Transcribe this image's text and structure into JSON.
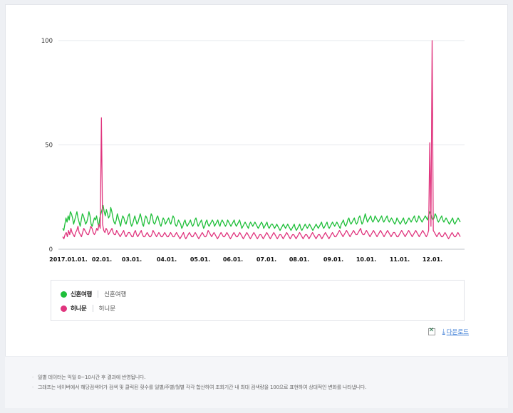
{
  "chart_data": {
    "type": "line",
    "yticks": [
      0,
      50,
      100
    ],
    "ylim": [
      0,
      100
    ],
    "xtick_labels": [
      "2017.01.01.",
      "02.01.",
      "03.01.",
      "04.01.",
      "05.01.",
      "06.01.",
      "07.01.",
      "08.01.",
      "09.01.",
      "10.01.",
      "11.01.",
      "12.01."
    ],
    "grid": true,
    "series": [
      {
        "name": "신혼여행",
        "color": "#1fbf3a",
        "values": [
          10,
          9,
          12,
          15,
          13,
          16,
          14,
          18,
          17,
          15,
          12,
          14,
          16,
          18,
          15,
          13,
          11,
          14,
          17,
          16,
          14,
          12,
          13,
          15,
          18,
          16,
          12,
          11,
          13,
          15,
          14,
          16,
          13,
          11,
          15,
          17,
          19,
          21,
          18,
          16,
          19,
          17,
          15,
          16,
          20,
          18,
          15,
          13,
          12,
          14,
          17,
          15,
          13,
          11,
          14,
          16,
          15,
          13,
          12,
          14,
          16,
          17,
          13,
          11,
          12,
          14,
          16,
          14,
          12,
          13,
          15,
          17,
          15,
          12,
          11,
          14,
          16,
          15,
          13,
          12,
          14,
          17,
          16,
          13,
          12,
          13,
          15,
          16,
          14,
          12,
          11,
          13,
          15,
          14,
          12,
          13,
          14,
          15,
          13,
          12,
          14,
          16,
          15,
          12,
          11,
          12,
          14,
          13,
          12,
          10,
          11,
          13,
          14,
          12,
          11,
          12,
          13,
          14,
          12,
          11,
          12,
          14,
          15,
          13,
          11,
          12,
          13,
          14,
          12,
          10,
          11,
          13,
          14,
          12,
          11,
          12,
          13,
          14,
          13,
          11,
          12,
          13,
          14,
          12,
          11,
          13,
          14,
          13,
          12,
          11,
          12,
          14,
          13,
          12,
          11,
          12,
          13,
          14,
          12,
          11,
          12,
          13,
          14,
          12,
          10,
          11,
          12,
          13,
          12,
          11,
          10,
          12,
          13,
          12,
          11,
          12,
          13,
          12,
          11,
          10,
          11,
          12,
          13,
          12,
          10,
          11,
          12,
          13,
          11,
          10,
          11,
          12,
          12,
          11,
          10,
          11,
          12,
          11,
          10,
          9,
          10,
          11,
          12,
          11,
          10,
          11,
          12,
          11,
          10,
          9,
          10,
          11,
          12,
          10,
          9,
          10,
          11,
          12,
          10,
          9,
          10,
          11,
          12,
          11,
          10,
          11,
          12,
          11,
          10,
          9,
          10,
          11,
          12,
          11,
          10,
          11,
          12,
          13,
          11,
          10,
          11,
          12,
          13,
          11,
          10,
          11,
          12,
          13,
          12,
          11,
          12,
          13,
          12,
          11,
          10,
          12,
          13,
          14,
          12,
          11,
          12,
          14,
          15,
          13,
          12,
          13,
          14,
          15,
          13,
          12,
          13,
          15,
          16,
          14,
          12,
          13,
          15,
          17,
          15,
          13,
          14,
          15,
          16,
          14,
          13,
          14,
          16,
          15,
          14,
          13,
          14,
          15,
          16,
          14,
          13,
          14,
          15,
          16,
          14,
          13,
          14,
          15,
          14,
          13,
          12,
          13,
          15,
          14,
          13,
          12,
          13,
          14,
          15,
          13,
          12,
          13,
          14,
          15,
          14,
          13,
          14,
          15,
          16,
          14,
          13,
          14,
          16,
          15,
          14,
          13,
          14,
          15,
          16,
          15,
          14,
          16,
          18,
          17,
          15,
          14,
          15,
          17,
          16,
          14,
          13,
          14,
          15,
          16,
          14,
          13,
          14,
          15,
          14,
          13,
          12,
          13,
          14,
          15,
          13,
          12,
          13,
          14,
          15,
          14,
          13
        ],
        "note": "series sampled at equal intervals"
      },
      {
        "name": "허니문",
        "color": "#e0357e",
        "values": [
          6,
          5,
          7,
          8,
          6,
          9,
          7,
          10,
          8,
          7,
          6,
          8,
          9,
          11,
          8,
          7,
          6,
          8,
          10,
          9,
          8,
          7,
          7,
          9,
          11,
          10,
          8,
          7,
          8,
          10,
          9,
          12,
          10,
          63,
          12,
          9,
          8,
          10,
          9,
          7,
          8,
          9,
          10,
          8,
          7,
          7,
          9,
          8,
          7,
          6,
          7,
          8,
          9,
          7,
          6,
          7,
          8,
          8,
          7,
          6,
          6,
          8,
          9,
          7,
          6,
          7,
          8,
          9,
          7,
          6,
          6,
          7,
          8,
          7,
          6,
          6,
          7,
          9,
          8,
          7,
          6,
          7,
          8,
          7,
          6,
          6,
          7,
          8,
          7,
          6,
          6,
          7,
          8,
          7,
          6,
          6,
          7,
          8,
          7,
          6,
          5,
          6,
          7,
          8,
          6,
          5,
          6,
          7,
          8,
          7,
          6,
          6,
          7,
          8,
          7,
          6,
          5,
          6,
          7,
          8,
          7,
          6,
          6,
          7,
          9,
          8,
          7,
          6,
          7,
          8,
          7,
          6,
          5,
          6,
          7,
          8,
          7,
          6,
          6,
          7,
          8,
          7,
          6,
          5,
          6,
          7,
          8,
          7,
          6,
          6,
          7,
          8,
          7,
          6,
          5,
          6,
          7,
          8,
          7,
          6,
          5,
          6,
          7,
          8,
          7,
          6,
          5,
          6,
          7,
          7,
          6,
          5,
          6,
          7,
          8,
          7,
          6,
          5,
          6,
          7,
          8,
          7,
          6,
          5,
          6,
          7,
          7,
          6,
          5,
          6,
          7,
          8,
          7,
          6,
          5,
          6,
          7,
          7,
          6,
          5,
          6,
          7,
          8,
          7,
          6,
          5,
          6,
          7,
          7,
          6,
          5,
          6,
          7,
          8,
          7,
          6,
          5,
          6,
          7,
          7,
          6,
          5,
          6,
          7,
          8,
          7,
          6,
          5,
          6,
          7,
          8,
          7,
          6,
          6,
          7,
          8,
          9,
          8,
          7,
          6,
          7,
          8,
          9,
          8,
          7,
          6,
          7,
          8,
          9,
          8,
          7,
          7,
          8,
          9,
          10,
          8,
          7,
          7,
          8,
          9,
          8,
          7,
          6,
          7,
          8,
          9,
          8,
          7,
          6,
          7,
          8,
          9,
          8,
          7,
          6,
          7,
          8,
          9,
          8,
          7,
          6,
          7,
          8,
          8,
          7,
          6,
          6,
          7,
          8,
          9,
          8,
          7,
          6,
          7,
          8,
          9,
          8,
          7,
          6,
          7,
          8,
          9,
          8,
          7,
          6,
          7,
          8,
          9,
          8,
          7,
          6,
          7,
          9,
          51,
          11,
          100,
          9,
          8,
          7,
          6,
          7,
          8,
          7,
          6,
          6,
          7,
          8,
          7,
          6,
          5,
          6,
          7,
          8,
          7,
          6,
          6,
          7,
          8,
          7,
          6
        ],
        "note": "series sampled at equal intervals"
      }
    ]
  },
  "legend": {
    "items": [
      {
        "name": "신혼여행",
        "keyword": "신혼여행",
        "color": "#1fbf3a"
      },
      {
        "name": "허니문",
        "keyword": "허니문",
        "color": "#e0357e"
      }
    ]
  },
  "tools": {
    "download_label": "다운로드"
  },
  "footer": {
    "notes": [
      "일별 데이터는 익일 8~10시간 후 결과에 반영됩니다.",
      "그래프는 네이버에서 해당검색어가 검색 및 클릭된 횟수를 일별/주별/월별 각각 합산하여 조회기간 내 최대 검색량을 100으로 표현하여 상대적인 변화를 나타냅니다."
    ]
  }
}
